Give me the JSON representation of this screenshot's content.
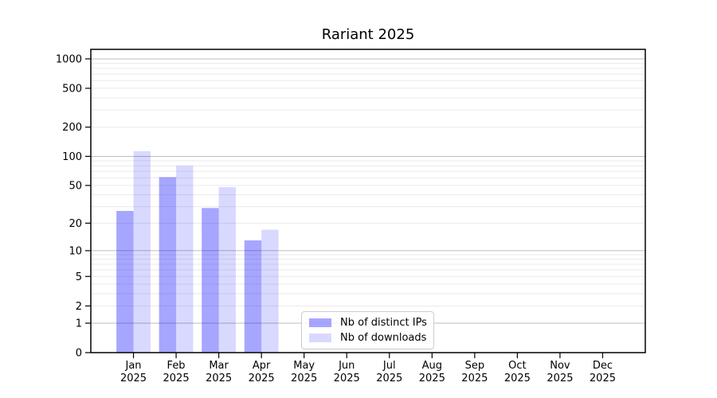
{
  "chart_data": {
    "type": "bar",
    "title": "Rariant 2025",
    "categories": [
      "Jan",
      "Feb",
      "Mar",
      "Apr",
      "May",
      "Jun",
      "Jul",
      "Aug",
      "Sep",
      "Oct",
      "Nov",
      "Dec"
    ],
    "x_tick_year": "2025",
    "series": [
      {
        "name": "Nb of distinct IPs",
        "color": "rgba(0,0,255,0.35)",
        "color_hex_on_white": "#a6a6ff",
        "values": [
          27,
          61,
          29,
          13,
          null,
          null,
          null,
          null,
          null,
          null,
          null,
          null
        ]
      },
      {
        "name": "Nb of downloads",
        "color": "rgba(0,0,255,0.15)",
        "color_hex_on_white": "#d9d9ff",
        "values": [
          113,
          80,
          48,
          17,
          null,
          null,
          null,
          null,
          null,
          null,
          null,
          null
        ]
      }
    ],
    "xlabel": "",
    "ylabel": "",
    "y_scale": "log10(1+y)",
    "y_ticks": [
      0,
      1,
      2,
      5,
      10,
      20,
      50,
      100,
      200,
      500,
      1000
    ],
    "major_gridlines": [
      1,
      10,
      100,
      1000
    ],
    "minor_gridlines": [
      2,
      3,
      4,
      5,
      6,
      7,
      8,
      9,
      20,
      30,
      40,
      50,
      60,
      70,
      80,
      90,
      200,
      300,
      400,
      500,
      600,
      700,
      800,
      900
    ],
    "ylim": [
      0,
      1250
    ],
    "grid": true,
    "legend_position": "lower-center",
    "colors": {
      "major_grid": "#bdbdbd",
      "minor_grid": "#eaeaea",
      "spine": "#000000",
      "legend_border": "#cccccc"
    }
  }
}
